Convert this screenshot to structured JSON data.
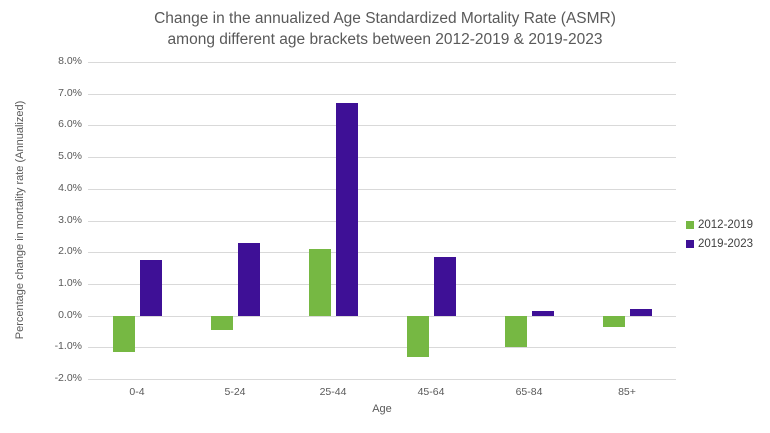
{
  "chart_data": {
    "type": "bar",
    "title_line1": "Change in the annualized Age Standardized Mortality Rate (ASMR)",
    "title_line2": "among different age brackets between 2012-2019 & 2019-2023",
    "xlabel": "Age",
    "ylabel": "Percentage change in mortality rate (Annualized)",
    "categories": [
      "0-4",
      "5-24",
      "25-44",
      "45-64",
      "65-84",
      "85+"
    ],
    "series": [
      {
        "name": "2012-2019",
        "color": "#76b843",
        "values": [
          -1.15,
          -0.45,
          2.1,
          -1.3,
          -1.0,
          -0.35
        ]
      },
      {
        "name": "2019-2023",
        "color": "#3e1096",
        "values": [
          1.75,
          2.3,
          6.7,
          1.85,
          0.15,
          0.2
        ]
      }
    ],
    "ylim": [
      -2,
      8
    ],
    "ytick_step": 1,
    "ytick_labels": [
      "8.0%",
      "7.0%",
      "6.0%",
      "5.0%",
      "4.0%",
      "3.0%",
      "2.0%",
      "1.0%",
      "0.0%",
      "-1.0%",
      "-2.0%"
    ],
    "grid": "horizontal",
    "legend_position": "right",
    "colors": {
      "background": "#ffffff",
      "grid": "#d9d9d9",
      "text": "#595959",
      "legend_text": "#404040"
    }
  }
}
